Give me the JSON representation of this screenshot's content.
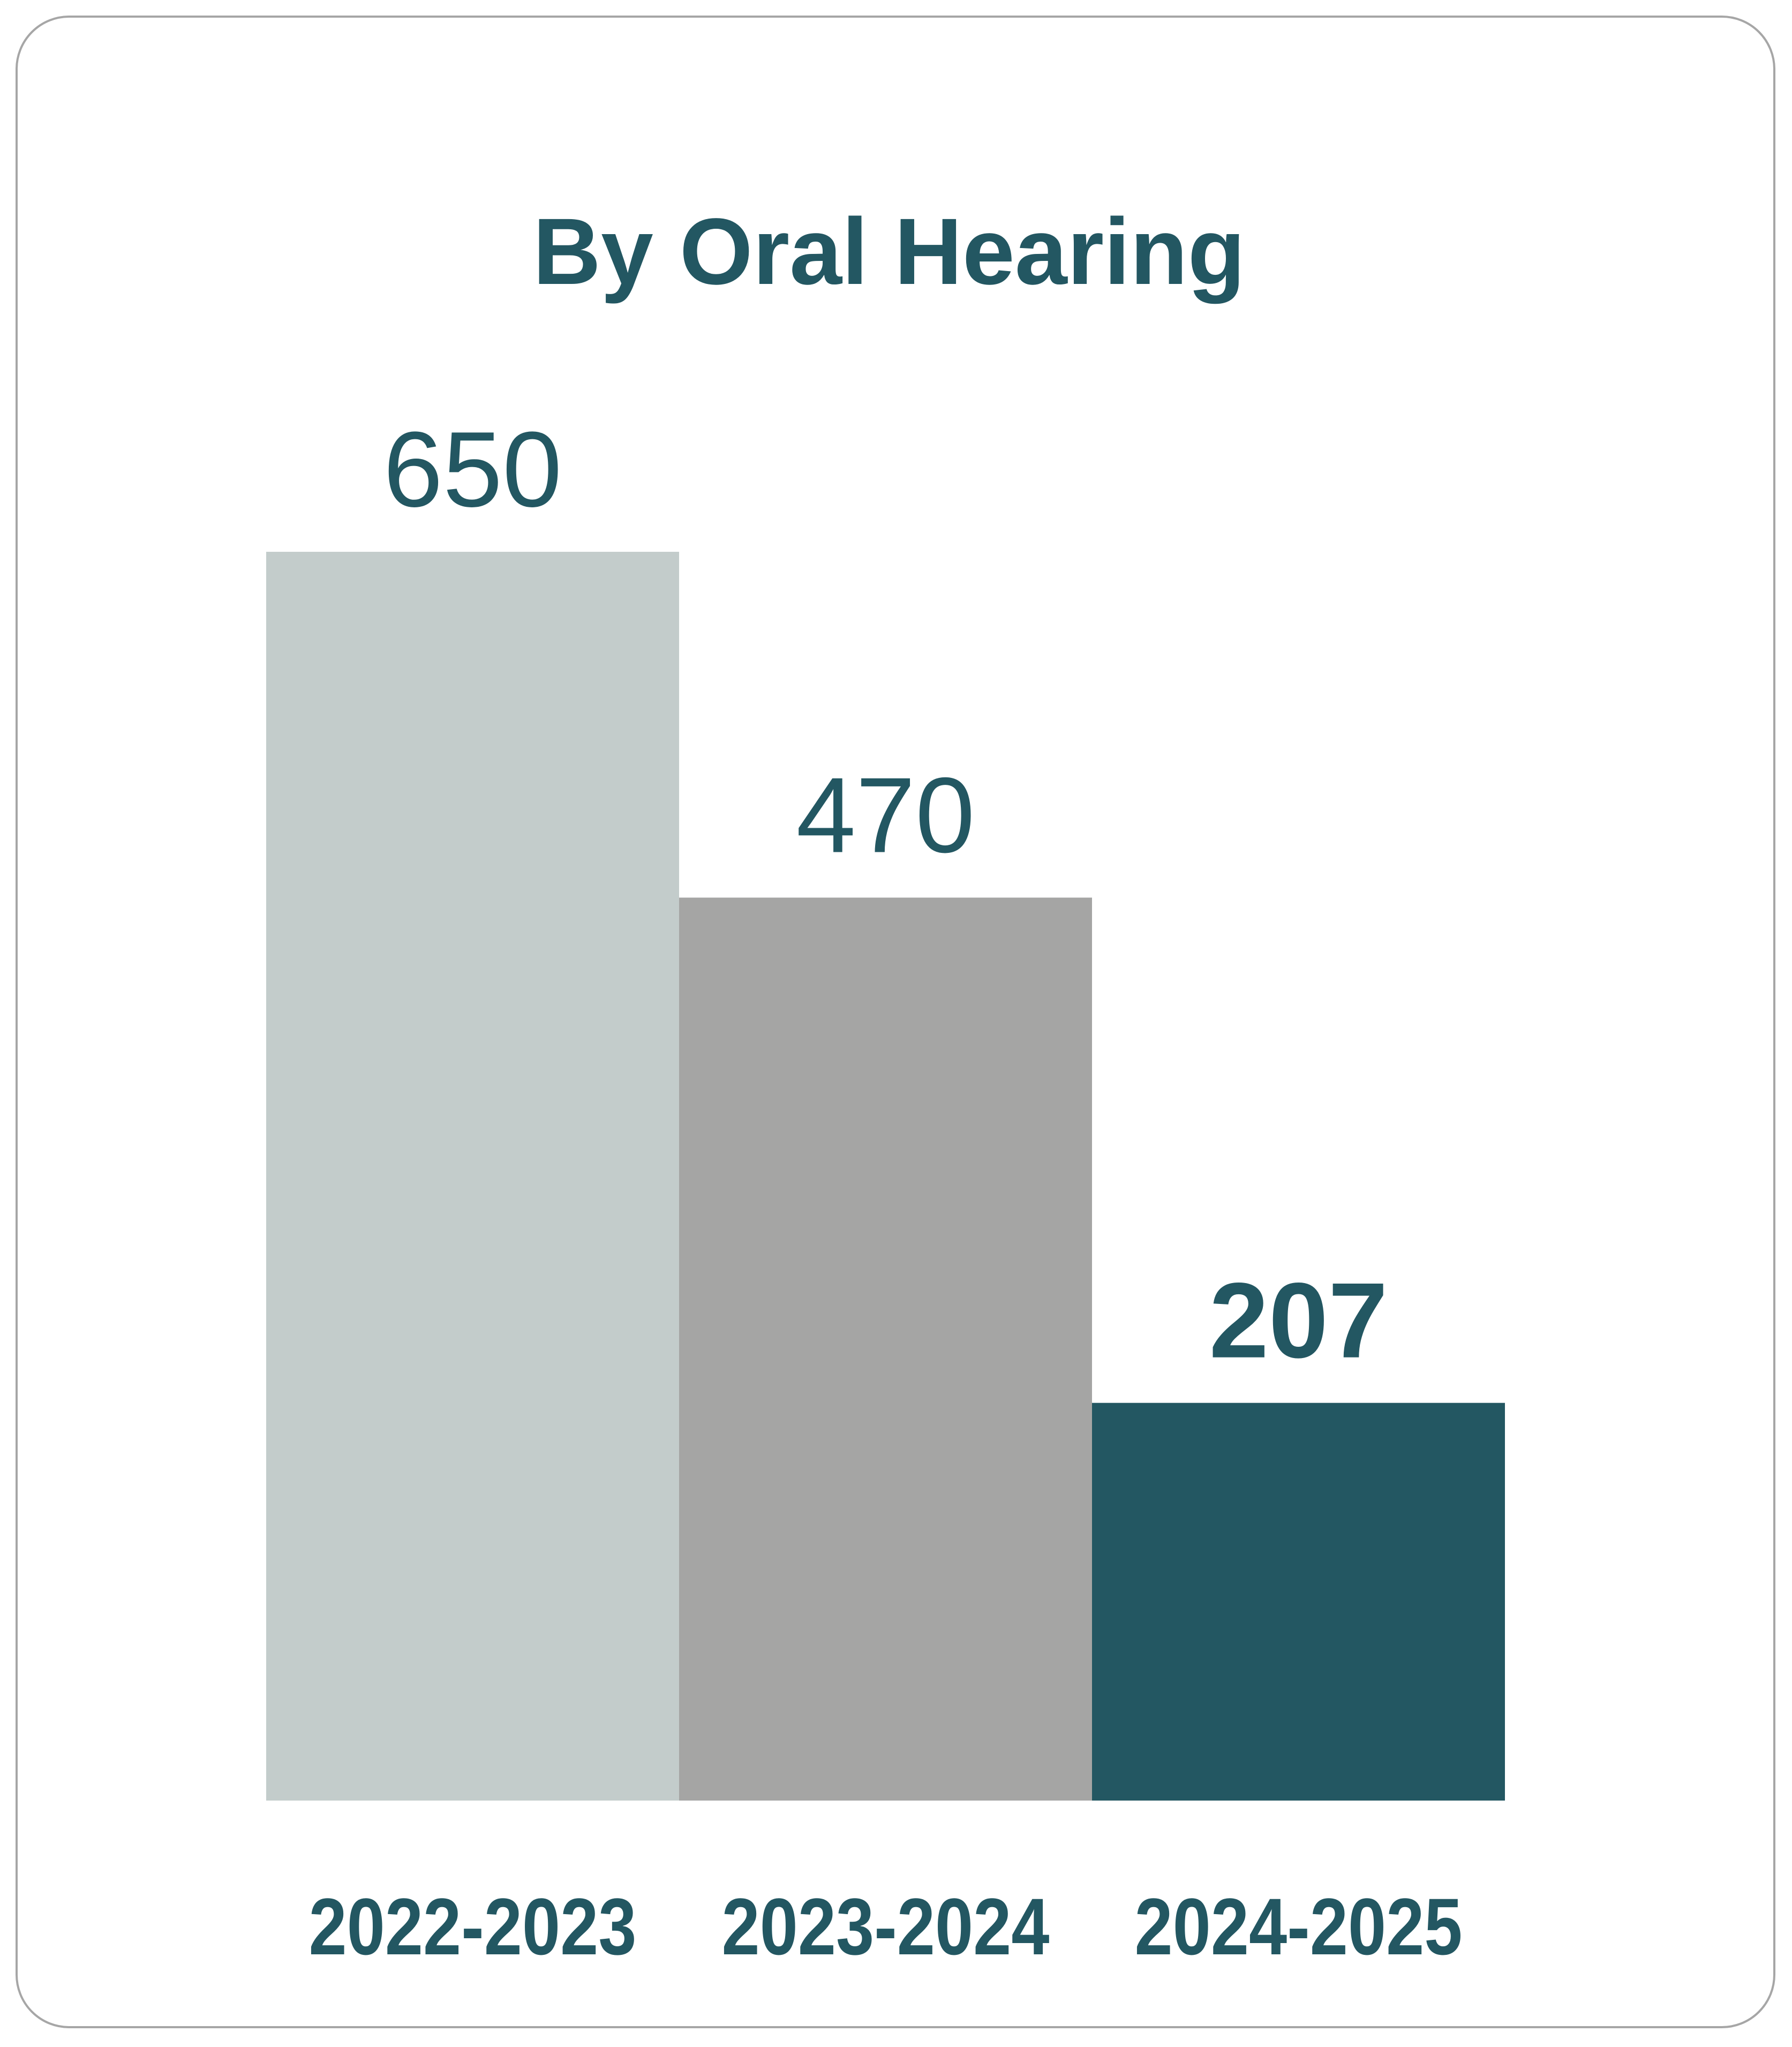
{
  "chart_data": {
    "type": "bar",
    "title": "By Oral Hearing",
    "categories": [
      "2022-2023",
      "2023-2024",
      "2024-2025"
    ],
    "values": [
      650,
      470,
      207
    ],
    "value_labels": [
      "650",
      "470",
      "207"
    ],
    "colors": [
      "#c3cccb",
      "#a5a5a4",
      "#235762"
    ],
    "text_color": "#235762",
    "emphasized_index": 2,
    "ylim": [
      0,
      650
    ],
    "grid": false,
    "legend": "none",
    "xlabel": "",
    "ylabel": ""
  }
}
